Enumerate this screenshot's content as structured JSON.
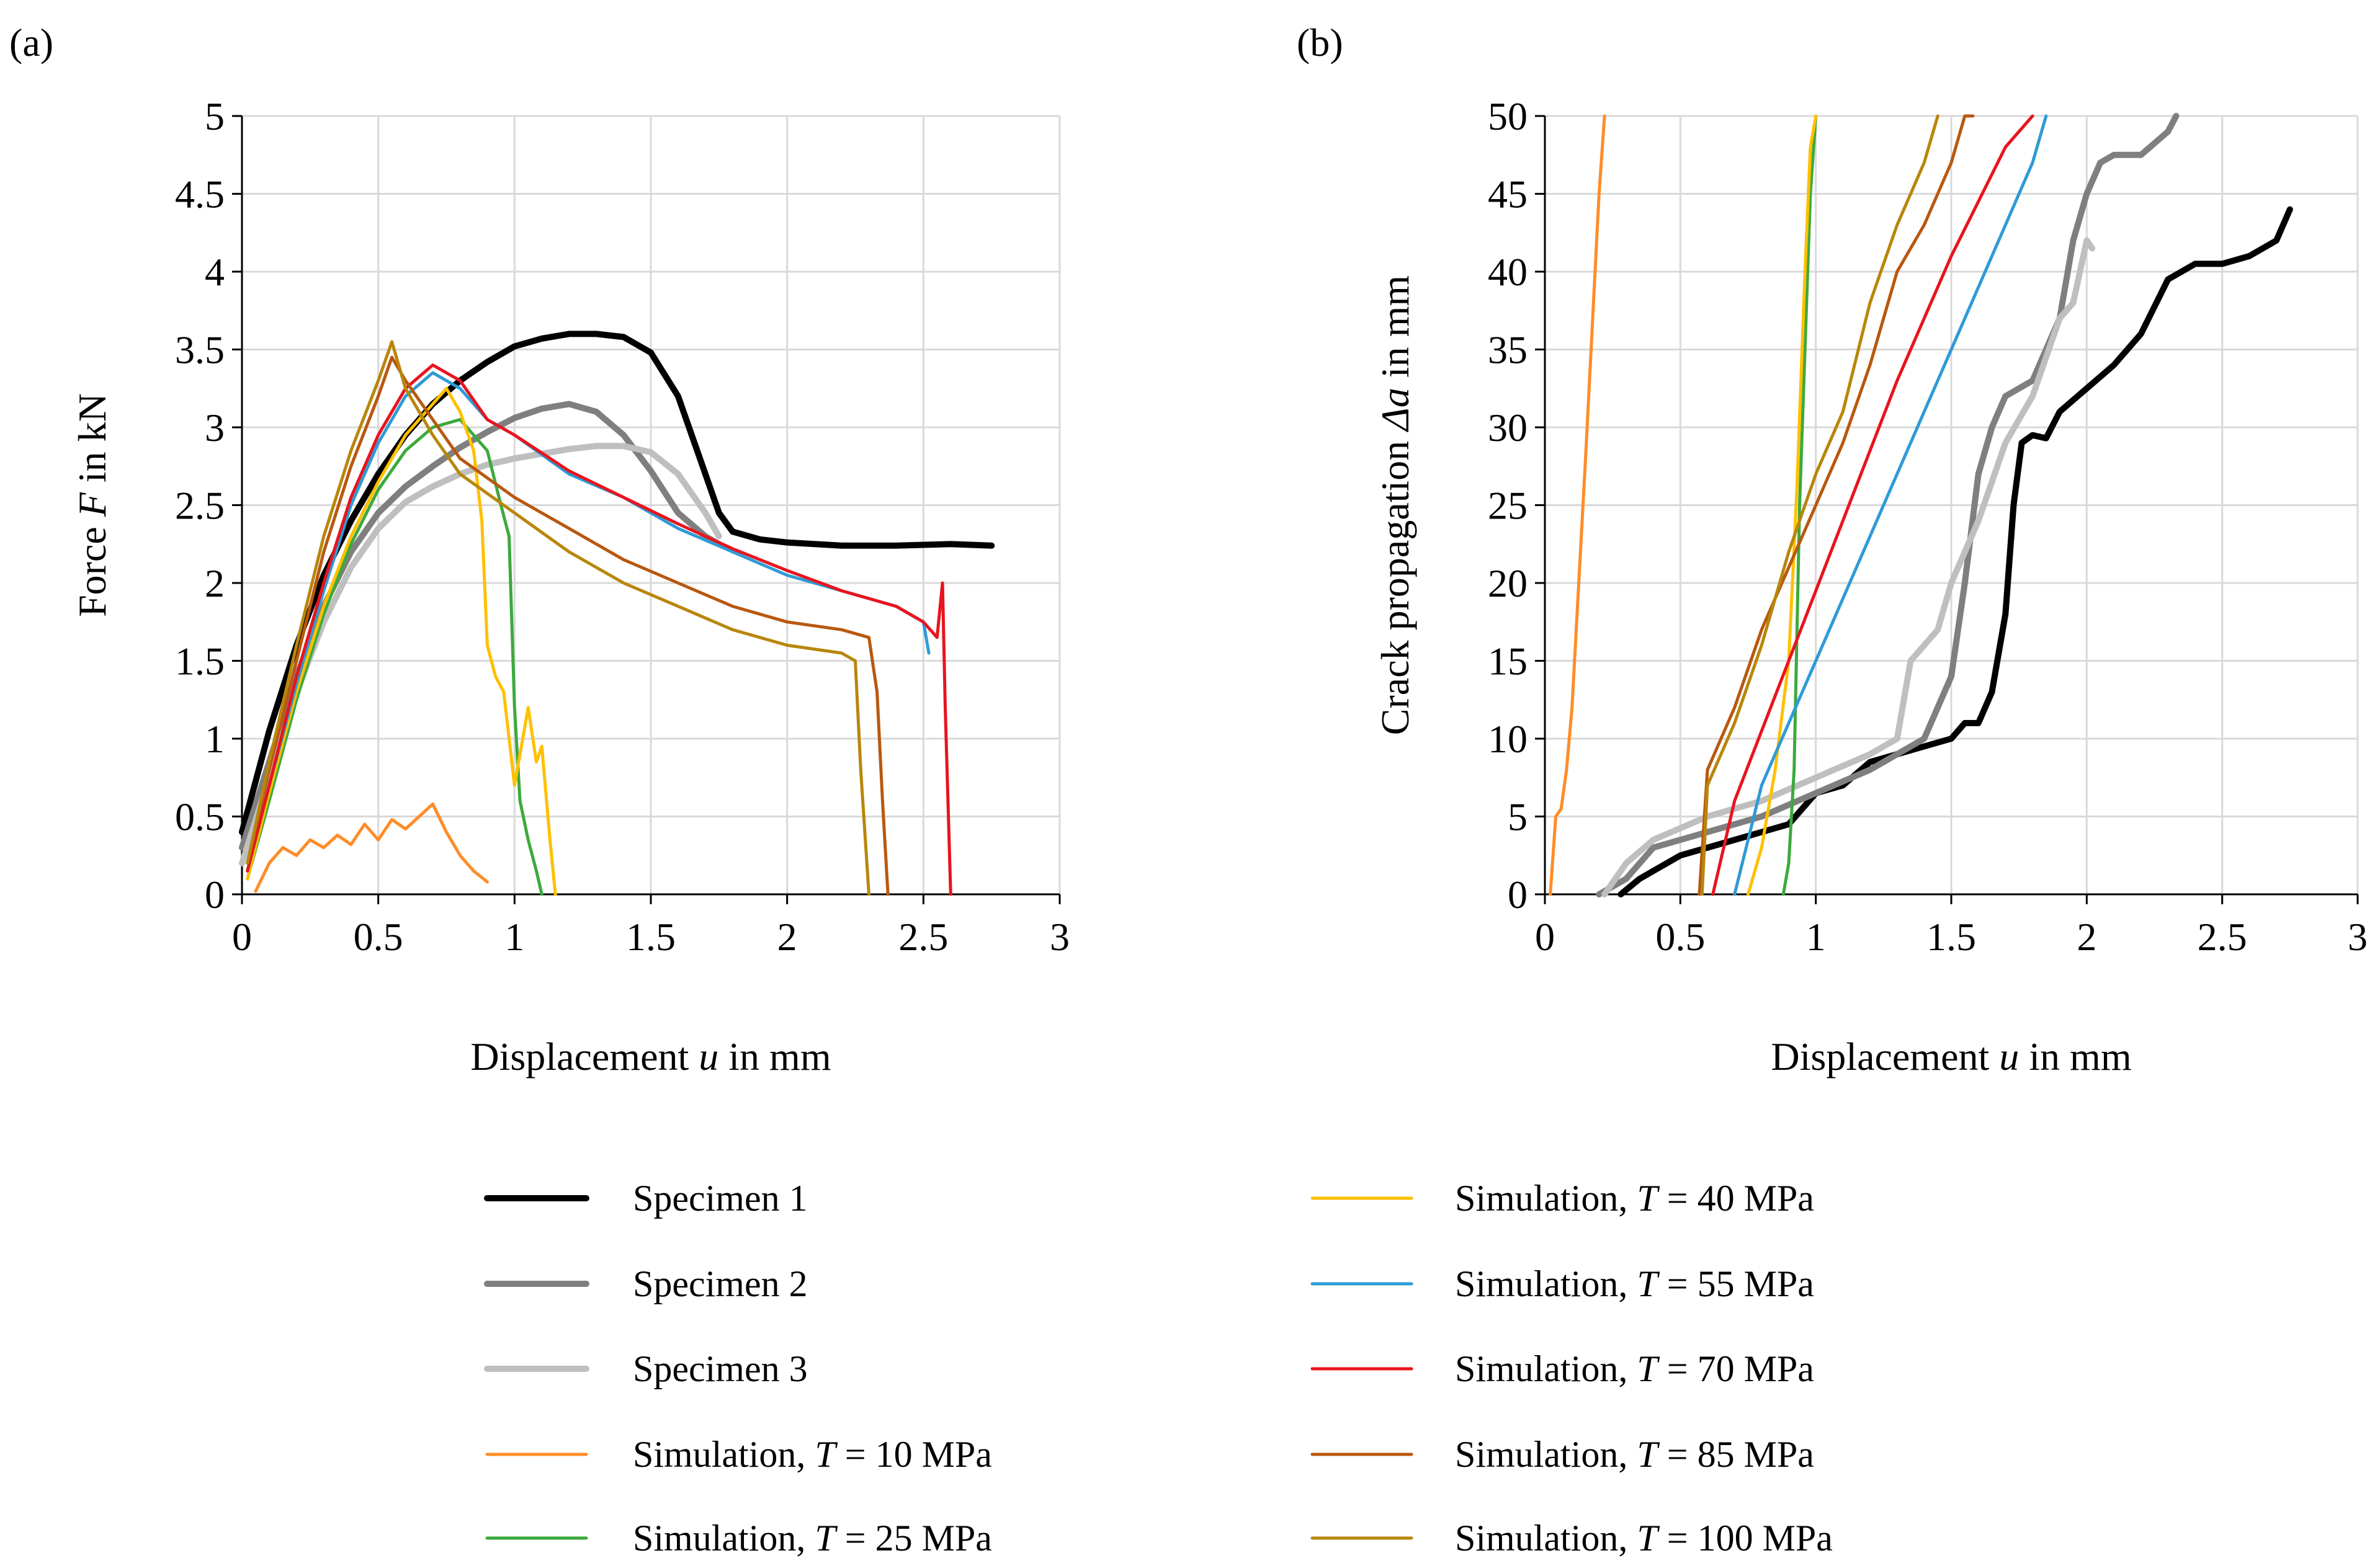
{
  "colors": {
    "specimen_1": "#000000",
    "specimen_2": "#7f7f7f",
    "specimen_3": "#bfbfbf",
    "sim_10": "#ff8c28",
    "sim_25": "#3caa3c",
    "sim_40": "#ffc000",
    "sim_55": "#2e9bd6",
    "sim_70": "#e8141e",
    "sim_85": "#b8580f",
    "sim_100": "#b8860b"
  },
  "legend": [
    {
      "key": "specimen_1",
      "pre": "Specimen 1",
      "var": "",
      "post": "",
      "width": 10
    },
    {
      "key": "specimen_2",
      "pre": "Specimen 2",
      "var": "",
      "post": "",
      "width": 10
    },
    {
      "key": "specimen_3",
      "pre": "Specimen 3",
      "var": "",
      "post": "",
      "width": 10
    },
    {
      "key": "sim_10",
      "pre": "Simulation, ",
      "var": "T",
      "post": " = 10 MPa",
      "width": 5
    },
    {
      "key": "sim_25",
      "pre": "Simulation, ",
      "var": "T",
      "post": " = 25 MPa",
      "width": 5
    },
    {
      "key": "sim_40",
      "pre": "Simulation, ",
      "var": "T",
      "post": " = 40 MPa",
      "width": 5
    },
    {
      "key": "sim_55",
      "pre": "Simulation, ",
      "var": "T",
      "post": " = 55 MPa",
      "width": 5
    },
    {
      "key": "sim_70",
      "pre": "Simulation, ",
      "var": "T",
      "post": " = 70 MPa",
      "width": 5
    },
    {
      "key": "sim_85",
      "pre": "Simulation, ",
      "var": "T",
      "post": " = 85 MPa",
      "width": 5
    },
    {
      "key": "sim_100",
      "pre": "Simulation, ",
      "var": "T",
      "post": " = 100 MPa",
      "width": 5
    }
  ],
  "chart_data": [
    {
      "panel": "(a)",
      "type": "line",
      "xlabel": {
        "pre": "Displacement ",
        "var": "u",
        "post": " in mm"
      },
      "ylabel": {
        "pre": "Force ",
        "var": "F",
        "post": " in kN"
      },
      "xlim": [
        0,
        3
      ],
      "ylim": [
        0,
        5
      ],
      "xticks": [
        0,
        0.5,
        1,
        1.5,
        2,
        2.5,
        3
      ],
      "xtick_labels": [
        "0",
        "0.5",
        "1",
        "1.5",
        "2",
        "2.5",
        "3"
      ],
      "yticks": [
        0,
        0.5,
        1,
        1.5,
        2,
        2.5,
        3,
        3.5,
        4,
        4.5,
        5
      ],
      "ytick_labels": [
        "0",
        "0.5",
        "1",
        "1.5",
        "2",
        "2.5",
        "3",
        "3.5",
        "4",
        "4.5",
        "5"
      ],
      "grid": true,
      "series": [
        {
          "key": "specimen_1",
          "name": "Specimen 1",
          "width": 10,
          "x": [
            0,
            0.1,
            0.2,
            0.3,
            0.4,
            0.5,
            0.6,
            0.7,
            0.8,
            0.9,
            1.0,
            1.1,
            1.2,
            1.3,
            1.4,
            1.5,
            1.6,
            1.7,
            1.75,
            1.8,
            1.9,
            2.0,
            2.2,
            2.4,
            2.6,
            2.75
          ],
          "y": [
            0.4,
            1.05,
            1.6,
            2.05,
            2.4,
            2.7,
            2.95,
            3.15,
            3.3,
            3.42,
            3.52,
            3.57,
            3.6,
            3.6,
            3.58,
            3.48,
            3.2,
            2.7,
            2.45,
            2.33,
            2.28,
            2.26,
            2.24,
            2.24,
            2.25,
            2.24
          ]
        },
        {
          "key": "specimen_2",
          "name": "Specimen 2",
          "width": 10,
          "x": [
            0,
            0.1,
            0.2,
            0.3,
            0.4,
            0.5,
            0.6,
            0.7,
            0.8,
            0.9,
            1.0,
            1.1,
            1.2,
            1.3,
            1.4,
            1.5,
            1.6,
            1.7,
            1.75
          ],
          "y": [
            0.3,
            0.85,
            1.4,
            1.85,
            2.2,
            2.45,
            2.62,
            2.75,
            2.87,
            2.97,
            3.06,
            3.12,
            3.15,
            3.1,
            2.95,
            2.72,
            2.45,
            2.3,
            2.25
          ]
        },
        {
          "key": "specimen_3",
          "name": "Specimen 3",
          "width": 10,
          "x": [
            0,
            0.1,
            0.2,
            0.3,
            0.4,
            0.5,
            0.6,
            0.7,
            0.8,
            0.9,
            1.0,
            1.1,
            1.2,
            1.3,
            1.4,
            1.5,
            1.6,
            1.7,
            1.75
          ],
          "y": [
            0.2,
            0.75,
            1.3,
            1.75,
            2.1,
            2.35,
            2.52,
            2.62,
            2.7,
            2.76,
            2.8,
            2.83,
            2.86,
            2.88,
            2.88,
            2.84,
            2.7,
            2.45,
            2.3
          ]
        },
        {
          "key": "sim_10",
          "name": "Simulation, T = 10 MPa",
          "width": 5,
          "x": [
            0.05,
            0.1,
            0.15,
            0.2,
            0.25,
            0.3,
            0.35,
            0.4,
            0.45,
            0.5,
            0.55,
            0.6,
            0.65,
            0.7,
            0.75,
            0.8,
            0.85,
            0.9
          ],
          "y": [
            0.02,
            0.2,
            0.3,
            0.25,
            0.35,
            0.3,
            0.38,
            0.32,
            0.45,
            0.35,
            0.48,
            0.42,
            0.5,
            0.58,
            0.4,
            0.25,
            0.15,
            0.08
          ]
        },
        {
          "key": "sim_25",
          "name": "Simulation, T = 25 MPa",
          "width": 5,
          "x": [
            0.02,
            0.1,
            0.2,
            0.3,
            0.4,
            0.5,
            0.6,
            0.7,
            0.8,
            0.85,
            0.9,
            0.95,
            0.98,
            1.0,
            1.02,
            1.05,
            1.08,
            1.1
          ],
          "y": [
            0.1,
            0.6,
            1.25,
            1.8,
            2.25,
            2.6,
            2.85,
            3.0,
            3.05,
            2.95,
            2.85,
            2.5,
            2.3,
            1.2,
            0.6,
            0.35,
            0.15,
            0.0
          ]
        },
        {
          "key": "sim_40",
          "name": "Simulation, T = 40 MPa",
          "width": 5,
          "x": [
            0.02,
            0.1,
            0.2,
            0.3,
            0.4,
            0.5,
            0.6,
            0.7,
            0.75,
            0.8,
            0.85,
            0.88,
            0.9,
            0.93,
            0.96,
            1.0,
            1.05,
            1.08,
            1.1,
            1.13,
            1.15
          ],
          "y": [
            0.1,
            0.65,
            1.3,
            1.85,
            2.3,
            2.65,
            2.95,
            3.15,
            3.25,
            3.1,
            2.85,
            2.4,
            1.6,
            1.4,
            1.3,
            0.7,
            1.2,
            0.85,
            0.95,
            0.35,
            0.0
          ]
        },
        {
          "key": "sim_55",
          "name": "Simulation, T = 55 MPa",
          "width": 5,
          "x": [
            0.02,
            0.1,
            0.2,
            0.3,
            0.4,
            0.5,
            0.6,
            0.7,
            0.8,
            0.9,
            1.0,
            1.2,
            1.4,
            1.6,
            1.8,
            2.0,
            2.2,
            2.4,
            2.5,
            2.52
          ],
          "y": [
            0.15,
            0.7,
            1.35,
            1.95,
            2.5,
            2.9,
            3.2,
            3.35,
            3.25,
            3.05,
            2.95,
            2.7,
            2.55,
            2.35,
            2.2,
            2.05,
            1.95,
            1.85,
            1.75,
            1.55
          ]
        },
        {
          "key": "sim_70",
          "name": "Simulation, T = 70 MPa",
          "width": 5,
          "x": [
            0.02,
            0.1,
            0.2,
            0.3,
            0.4,
            0.5,
            0.6,
            0.7,
            0.8,
            0.9,
            1.0,
            1.2,
            1.4,
            1.6,
            1.8,
            2.0,
            2.2,
            2.4,
            2.5,
            2.55,
            2.57,
            2.58,
            2.6
          ],
          "y": [
            0.15,
            0.7,
            1.4,
            2.0,
            2.55,
            2.95,
            3.25,
            3.4,
            3.3,
            3.05,
            2.95,
            2.72,
            2.55,
            2.38,
            2.22,
            2.08,
            1.95,
            1.85,
            1.75,
            1.65,
            2.0,
            1.2,
            0.0
          ]
        },
        {
          "key": "sim_85",
          "name": "Simulation, T = 85 MPa",
          "width": 5,
          "x": [
            0.02,
            0.1,
            0.2,
            0.3,
            0.4,
            0.5,
            0.55,
            0.6,
            0.7,
            0.8,
            1.0,
            1.2,
            1.4,
            1.6,
            1.8,
            2.0,
            2.2,
            2.3,
            2.33,
            2.35,
            2.37
          ],
          "y": [
            0.2,
            0.8,
            1.5,
            2.2,
            2.75,
            3.2,
            3.45,
            3.3,
            3.05,
            2.8,
            2.55,
            2.35,
            2.15,
            2.0,
            1.85,
            1.75,
            1.7,
            1.65,
            1.3,
            0.6,
            0.0
          ]
        },
        {
          "key": "sim_100",
          "name": "Simulation, T = 100 MPa",
          "width": 5,
          "x": [
            0.02,
            0.1,
            0.2,
            0.3,
            0.4,
            0.5,
            0.55,
            0.6,
            0.7,
            0.8,
            1.0,
            1.2,
            1.4,
            1.6,
            1.8,
            2.0,
            2.2,
            2.25,
            2.27,
            2.3
          ],
          "y": [
            0.2,
            0.85,
            1.6,
            2.3,
            2.85,
            3.3,
            3.55,
            3.25,
            2.95,
            2.7,
            2.45,
            2.2,
            2.0,
            1.85,
            1.7,
            1.6,
            1.55,
            1.5,
            0.8,
            0.0
          ]
        }
      ]
    },
    {
      "panel": "(b)",
      "type": "line",
      "xlabel": {
        "pre": "Displacement ",
        "var": "u",
        "post": " in mm"
      },
      "ylabel": {
        "pre": "Crack propagation ",
        "var": "Δa",
        "post": " in mm"
      },
      "xlim": [
        0,
        3
      ],
      "ylim": [
        0,
        50
      ],
      "xticks": [
        0,
        0.5,
        1,
        1.5,
        2,
        2.5,
        3
      ],
      "xtick_labels": [
        "0",
        "0.5",
        "1",
        "1.5",
        "2",
        "2.5",
        "3"
      ],
      "yticks": [
        0,
        5,
        10,
        15,
        20,
        25,
        30,
        35,
        40,
        45,
        50
      ],
      "ytick_labels": [
        "0",
        "5",
        "10",
        "15",
        "20",
        "25",
        "30",
        "35",
        "40",
        "45",
        "50"
      ],
      "grid": true,
      "series": [
        {
          "key": "specimen_1",
          "name": "Specimen 1",
          "width": 10,
          "x": [
            0.28,
            0.35,
            0.5,
            0.7,
            0.9,
            1.0,
            1.1,
            1.2,
            1.3,
            1.4,
            1.5,
            1.55,
            1.6,
            1.65,
            1.7,
            1.73,
            1.76,
            1.8,
            1.85,
            1.9,
            2.0,
            2.1,
            2.2,
            2.3,
            2.4,
            2.5,
            2.6,
            2.7,
            2.75
          ],
          "y": [
            0,
            1,
            2.5,
            3.5,
            4.5,
            6.5,
            7,
            8.5,
            9,
            9.5,
            10,
            11,
            11,
            13,
            18,
            25,
            29,
            29.5,
            29.3,
            31,
            32.5,
            34,
            36,
            39.5,
            40.5,
            40.5,
            41,
            42,
            44
          ]
        },
        {
          "key": "specimen_2",
          "name": "Specimen 2",
          "width": 10,
          "x": [
            0.2,
            0.3,
            0.4,
            0.6,
            0.8,
            1.0,
            1.2,
            1.3,
            1.4,
            1.5,
            1.55,
            1.6,
            1.65,
            1.7,
            1.8,
            1.9,
            1.95,
            2.0,
            2.05,
            2.1,
            2.2,
            2.3,
            2.33
          ],
          "y": [
            0,
            1,
            3,
            4,
            5,
            6.5,
            8,
            9,
            10,
            14,
            20,
            27,
            30,
            32,
            33,
            37,
            42,
            45,
            47,
            47.5,
            47.5,
            49,
            50
          ]
        },
        {
          "key": "specimen_3",
          "name": "Specimen 3",
          "width": 10,
          "x": [
            0.22,
            0.3,
            0.4,
            0.6,
            0.8,
            1.0,
            1.2,
            1.3,
            1.35,
            1.45,
            1.5,
            1.6,
            1.7,
            1.8,
            1.9,
            1.95,
            2.0,
            2.02
          ],
          "y": [
            0,
            2,
            3.5,
            5,
            6,
            7.5,
            9,
            10,
            15,
            17,
            20,
            24,
            29,
            32,
            37,
            38,
            42,
            41.5
          ]
        },
        {
          "key": "sim_10",
          "name": "Simulation, T = 10 MPa",
          "width": 5,
          "x": [
            0.02,
            0.04,
            0.06,
            0.08,
            0.1,
            0.15,
            0.2,
            0.22
          ],
          "y": [
            0,
            5,
            5.5,
            8,
            12,
            28,
            45,
            50
          ]
        },
        {
          "key": "sim_25",
          "name": "Simulation, T = 25 MPa",
          "width": 5,
          "x": [
            0.88,
            0.9,
            0.92,
            0.94,
            0.96,
            0.98,
            1.0
          ],
          "y": [
            0,
            2,
            8,
            25,
            35,
            45,
            50
          ]
        },
        {
          "key": "sim_40",
          "name": "Simulation, T = 40 MPa",
          "width": 5,
          "x": [
            0.75,
            0.8,
            0.85,
            0.9,
            0.93,
            0.96,
            0.98,
            1.0
          ],
          "y": [
            0,
            3,
            8,
            15,
            26,
            40,
            48,
            50
          ]
        },
        {
          "key": "sim_55",
          "name": "Simulation, T = 55 MPa",
          "width": 5,
          "x": [
            0.7,
            0.8,
            1.0,
            1.2,
            1.4,
            1.6,
            1.8,
            1.85
          ],
          "y": [
            0,
            7,
            15,
            23,
            31,
            39,
            47,
            50
          ]
        },
        {
          "key": "sim_70",
          "name": "Simulation, T = 70 MPa",
          "width": 5,
          "x": [
            0.62,
            0.7,
            0.9,
            1.1,
            1.3,
            1.5,
            1.7,
            1.8
          ],
          "y": [
            0,
            6,
            15,
            24,
            33,
            41,
            48,
            50
          ]
        },
        {
          "key": "sim_85",
          "name": "Simulation, T = 85 MPa",
          "width": 5,
          "x": [
            0.57,
            0.6,
            0.7,
            0.8,
            0.9,
            1.0,
            1.1,
            1.2,
            1.3,
            1.4,
            1.5,
            1.55,
            1.58
          ],
          "y": [
            0,
            8,
            12,
            17,
            21,
            25,
            29,
            34,
            40,
            43,
            47,
            50,
            50
          ]
        },
        {
          "key": "sim_100",
          "name": "Simulation, T = 100 MPa",
          "width": 5,
          "x": [
            0.58,
            0.6,
            0.7,
            0.8,
            0.9,
            1.0,
            1.1,
            1.2,
            1.3,
            1.4,
            1.45
          ],
          "y": [
            0,
            7,
            11,
            16,
            22,
            27,
            31,
            38,
            43,
            47,
            50
          ]
        }
      ]
    }
  ]
}
